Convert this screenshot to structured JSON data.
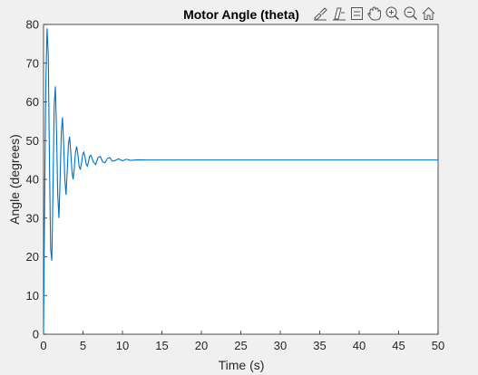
{
  "chart_data": {
    "type": "line",
    "title": "Motor Angle (theta)",
    "xlabel": "Time (s)",
    "ylabel": "Angle (degrees)",
    "xlim": [
      0,
      50
    ],
    "ylim": [
      0,
      80
    ],
    "xticks": [
      "0",
      "5",
      "10",
      "15",
      "20",
      "25",
      "30",
      "35",
      "40",
      "45",
      "50"
    ],
    "yticks": [
      "0",
      "10",
      "20",
      "30",
      "40",
      "50",
      "60",
      "70",
      "80"
    ],
    "grid": false,
    "line_color": "#0072bd",
    "series": [
      {
        "x": [
          0,
          0.15,
          0.3,
          0.45,
          0.6,
          0.75,
          0.9,
          1.05,
          1.2,
          1.35,
          1.5,
          1.65,
          1.8,
          1.95,
          2.1,
          2.25,
          2.4,
          2.55,
          2.7,
          2.85,
          3.0,
          3.15,
          3.3,
          3.45,
          3.6,
          3.75,
          3.9,
          4.05,
          4.2,
          4.35,
          4.5,
          4.65,
          4.8,
          4.95,
          5.1,
          5.25,
          5.4,
          5.55,
          5.7,
          5.85,
          6.0,
          6.3,
          6.6,
          6.9,
          7.2,
          7.5,
          7.8,
          8.1,
          8.4,
          8.7,
          9.0,
          9.5,
          10.0,
          10.5,
          11.0,
          12.0,
          13.0,
          14.0,
          20,
          30,
          40,
          50
        ],
        "y": [
          0,
          37,
          66,
          79,
          72,
          45,
          22,
          19,
          38,
          59,
          64,
          52,
          36,
          30,
          40,
          52,
          56,
          49,
          40,
          36,
          42,
          49,
          51,
          47,
          42,
          40,
          43,
          47,
          48.5,
          46.5,
          43.5,
          42.5,
          44,
          46.3,
          47,
          45.8,
          44,
          43.4,
          44.5,
          46,
          46.2,
          44.6,
          43.8,
          45.6,
          45.9,
          44.5,
          44.3,
          45.4,
          45.6,
          44.7,
          44.8,
          45.3,
          44.8,
          45.2,
          44.9,
          45.05,
          45,
          45,
          45,
          45,
          45,
          45
        ]
      }
    ]
  },
  "toolbar": {
    "icons": [
      "brush-icon",
      "datatip-icon",
      "legend-icon",
      "pan-icon",
      "zoom-in-icon",
      "zoom-out-icon",
      "home-icon"
    ]
  }
}
